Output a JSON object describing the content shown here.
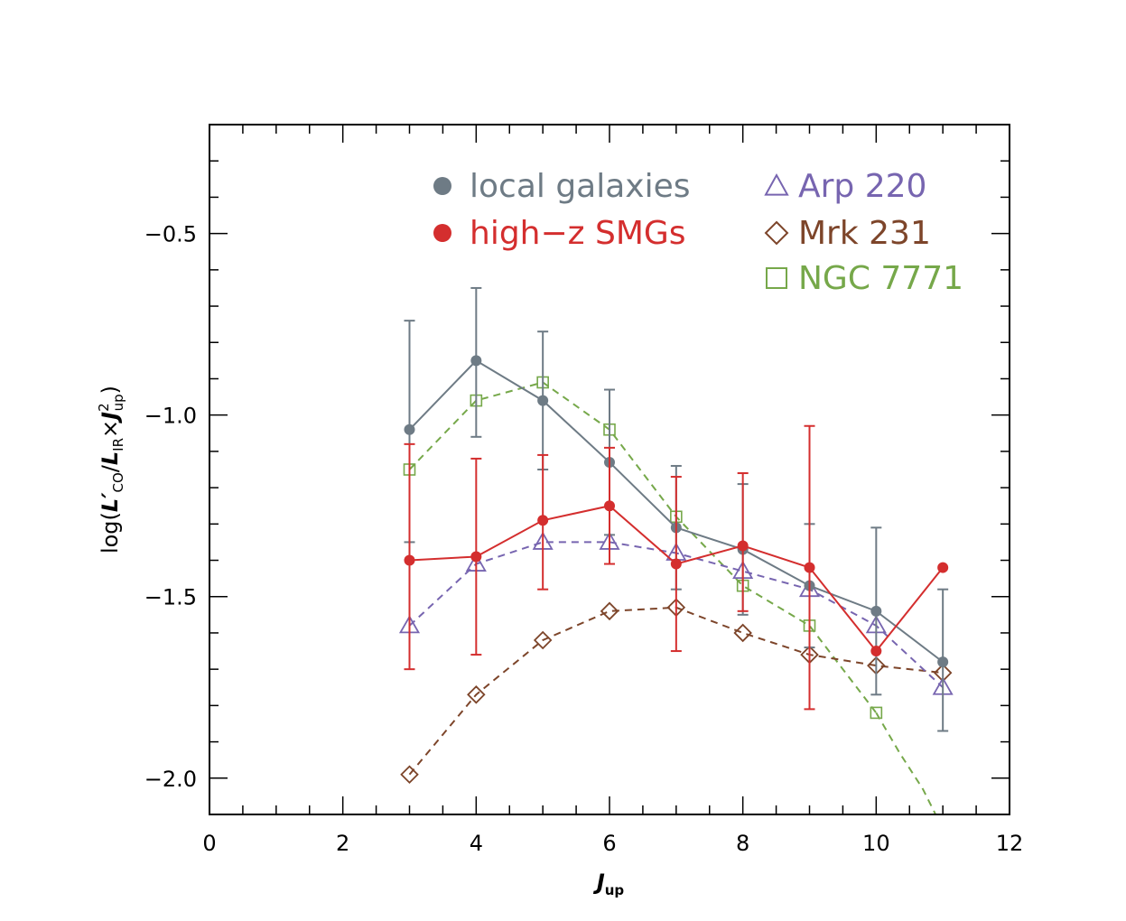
{
  "chart_data": {
    "type": "line",
    "title": "",
    "xlabel": "J_up",
    "ylabel": "log(L'_CO/L_IR×J²_up)",
    "xlim": [
      0,
      12
    ],
    "ylim": [
      -2.1,
      -0.2
    ],
    "x_ticks": [
      0,
      2,
      4,
      6,
      8,
      10,
      12
    ],
    "x_tick_labels": [
      "0",
      "2",
      "4",
      "6",
      "8",
      "10",
      "12"
    ],
    "y_ticks": [
      -0.5,
      -1.0,
      -1.5,
      -2.0
    ],
    "y_tick_labels": [
      "−0.5",
      "−1.0",
      "−1.5",
      "−2.0"
    ],
    "grid": false,
    "legend_position": "top-right",
    "series": [
      {
        "name": "local galaxies",
        "color": "#6e7b85",
        "marker": "filled-circle",
        "linestyle": "solid",
        "x": [
          3,
          4,
          5,
          6,
          7,
          8,
          9,
          10,
          11
        ],
        "y": [
          -1.04,
          -0.85,
          -0.96,
          -1.13,
          -1.31,
          -1.37,
          -1.47,
          -1.54,
          -1.68
        ],
        "err_low": [
          -1.35,
          -1.06,
          -1.15,
          -1.33,
          -1.48,
          -1.55,
          -1.64,
          -1.77,
          -1.87
        ],
        "err_high": [
          -0.74,
          -0.65,
          -0.77,
          -0.93,
          -1.14,
          -1.19,
          -1.3,
          -1.31,
          -1.48
        ]
      },
      {
        "name": "high-z SMGs",
        "color": "#d42e2e",
        "marker": "filled-circle",
        "linestyle": "solid",
        "x": [
          3,
          4,
          5,
          6,
          7,
          8,
          9,
          10,
          11
        ],
        "y": [
          -1.4,
          -1.39,
          -1.29,
          -1.25,
          -1.41,
          -1.36,
          -1.42,
          -1.65,
          -1.42
        ],
        "err_low": [
          -1.7,
          -1.66,
          -1.48,
          -1.41,
          -1.65,
          -1.54,
          -1.81,
          null,
          null
        ],
        "err_high": [
          -1.08,
          -1.12,
          -1.11,
          -1.09,
          -1.17,
          -1.16,
          -1.03,
          null,
          null
        ]
      },
      {
        "name": "Arp 220",
        "color": "#7765b0",
        "marker": "open-triangle",
        "linestyle": "dashed",
        "x": [
          3,
          4,
          5,
          6,
          7,
          8,
          9,
          10,
          11
        ],
        "y": [
          -1.58,
          -1.41,
          -1.35,
          -1.35,
          -1.38,
          -1.43,
          -1.48,
          -1.58,
          -1.75
        ]
      },
      {
        "name": "Mrk 231",
        "color": "#7d452a",
        "marker": "open-diamond",
        "linestyle": "dashed",
        "x": [
          3,
          4,
          5,
          6,
          7,
          8,
          9,
          10,
          11
        ],
        "y": [
          -1.99,
          -1.77,
          -1.62,
          -1.54,
          -1.53,
          -1.6,
          -1.66,
          -1.69,
          -1.71
        ]
      },
      {
        "name": "NGC 7771",
        "color": "#76a84a",
        "marker": "open-square",
        "linestyle": "dashed",
        "x": [
          3,
          4,
          5,
          6,
          7,
          8,
          9,
          10
        ],
        "y": [
          -1.15,
          -0.96,
          -0.91,
          -1.04,
          -1.28,
          -1.47,
          -1.58,
          -1.82
        ],
        "dashed_trend_extension": {
          "x": [
            10,
            10.35,
            10.7,
            11.0
          ],
          "y": [
            -1.82,
            -1.93,
            -2.03,
            -2.14
          ]
        }
      }
    ],
    "legend": [
      {
        "label": "local galaxies",
        "series": 0
      },
      {
        "label": "high−z SMGs",
        "series": 1
      },
      {
        "label": "Arp 220",
        "series": 2
      },
      {
        "label": "Mrk 231",
        "series": 3
      },
      {
        "label": "NGC 7771",
        "series": 4
      }
    ]
  }
}
